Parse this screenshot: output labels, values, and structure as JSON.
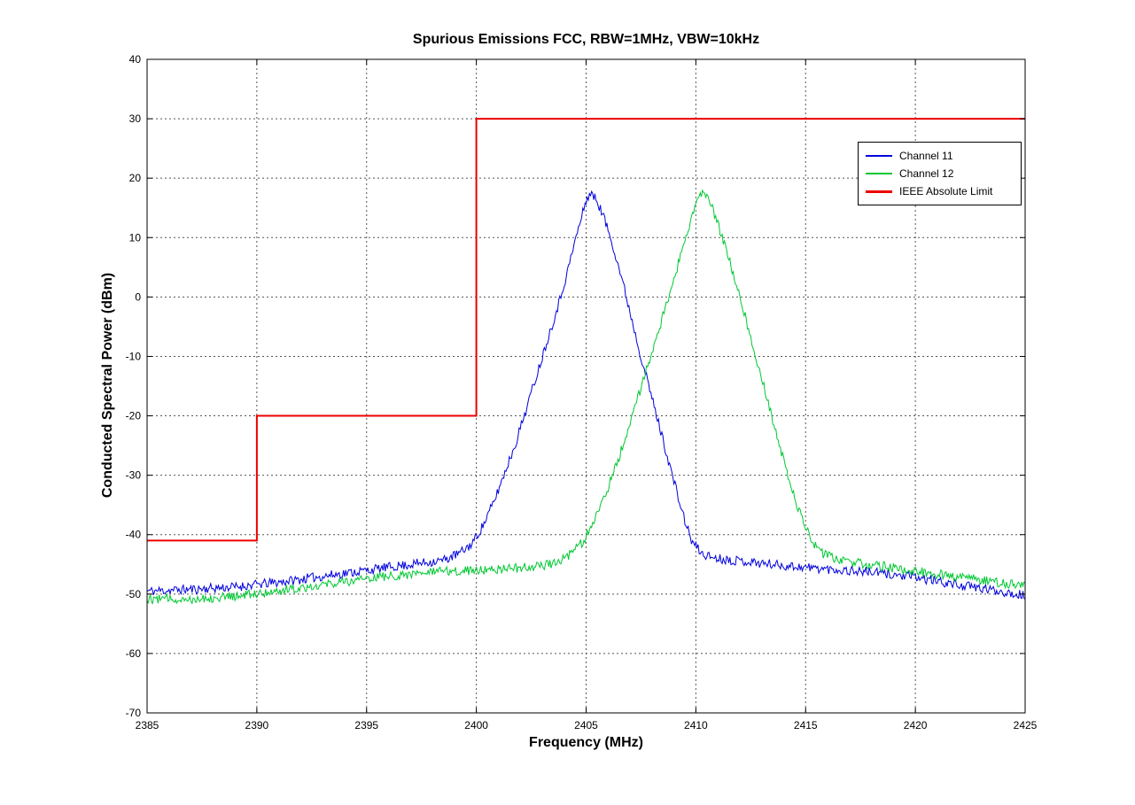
{
  "chart_data": {
    "type": "line",
    "title": "Spurious Emissions FCC, RBW=1MHz, VBW=10kHz",
    "xlabel": "Frequency (MHz)",
    "ylabel": "Conducted Spectral Power (dBm)",
    "xlim": [
      2385,
      2425
    ],
    "ylim": [
      -70,
      40
    ],
    "xticks": [
      2385,
      2390,
      2395,
      2400,
      2405,
      2410,
      2415,
      2420,
      2425
    ],
    "yticks": [
      -70,
      -60,
      -50,
      -40,
      -30,
      -20,
      -10,
      0,
      10,
      20,
      30,
      40
    ],
    "grid": true,
    "grid_style": "dashed",
    "legend_position": "upper right",
    "series": [
      {
        "name": "Channel 11",
        "color": "#0000dd",
        "linewidth": 1,
        "style": "noisy",
        "noise_amplitude": 0.8,
        "seed": 11,
        "points": [
          [
            2385,
            -49.5
          ],
          [
            2387,
            -49.2
          ],
          [
            2389,
            -48.8
          ],
          [
            2391,
            -48
          ],
          [
            2393,
            -47
          ],
          [
            2395,
            -46
          ],
          [
            2397,
            -45
          ],
          [
            2398.5,
            -44.3
          ],
          [
            2399.3,
            -43
          ],
          [
            2399.8,
            -41.5
          ],
          [
            2400.3,
            -38.5
          ],
          [
            2400.8,
            -34.5
          ],
          [
            2401.3,
            -29.5
          ],
          [
            2401.8,
            -24.5
          ],
          [
            2402.3,
            -18.5
          ],
          [
            2402.8,
            -12.5
          ],
          [
            2403.3,
            -6.5
          ],
          [
            2403.8,
            -0.5
          ],
          [
            2404.2,
            5
          ],
          [
            2404.5,
            9.5
          ],
          [
            2404.8,
            13.5
          ],
          [
            2405,
            16.3
          ],
          [
            2405.2,
            17.5
          ],
          [
            2405.5,
            16.2
          ],
          [
            2405.8,
            13.5
          ],
          [
            2406.2,
            9
          ],
          [
            2406.6,
            3.5
          ],
          [
            2407,
            -2.5
          ],
          [
            2407.5,
            -10
          ],
          [
            2408,
            -17
          ],
          [
            2408.5,
            -24
          ],
          [
            2409,
            -31
          ],
          [
            2409.4,
            -36.5
          ],
          [
            2409.8,
            -41
          ],
          [
            2410.3,
            -43.3
          ],
          [
            2411,
            -44
          ],
          [
            2412.5,
            -44.6
          ],
          [
            2414,
            -45.2
          ],
          [
            2416,
            -45.8
          ],
          [
            2418,
            -46.3
          ],
          [
            2420,
            -47.2
          ],
          [
            2422,
            -48.5
          ],
          [
            2424,
            -49.6
          ],
          [
            2425,
            -50.2
          ]
        ]
      },
      {
        "name": "Channel 12",
        "color": "#00c832",
        "linewidth": 1,
        "style": "noisy",
        "noise_amplitude": 0.8,
        "seed": 12,
        "points": [
          [
            2385,
            -50.8
          ],
          [
            2387,
            -50.8
          ],
          [
            2389,
            -50.4
          ],
          [
            2391,
            -49.4
          ],
          [
            2393,
            -48.4
          ],
          [
            2395,
            -47.4
          ],
          [
            2397,
            -46.6
          ],
          [
            2399,
            -46.1
          ],
          [
            2401,
            -45.8
          ],
          [
            2402.5,
            -45.5
          ],
          [
            2403.5,
            -44.8
          ],
          [
            2404.3,
            -43.3
          ],
          [
            2404.9,
            -41
          ],
          [
            2405.4,
            -37.5
          ],
          [
            2405.9,
            -33
          ],
          [
            2406.4,
            -28
          ],
          [
            2406.9,
            -22.5
          ],
          [
            2407.4,
            -16.5
          ],
          [
            2407.9,
            -10.5
          ],
          [
            2408.4,
            -4.5
          ],
          [
            2408.9,
            1.5
          ],
          [
            2409.3,
            7
          ],
          [
            2409.6,
            11
          ],
          [
            2409.9,
            14.5
          ],
          [
            2410.1,
            16.8
          ],
          [
            2410.3,
            17.5
          ],
          [
            2410.6,
            16
          ],
          [
            2410.9,
            13.5
          ],
          [
            2411.3,
            9
          ],
          [
            2411.7,
            4
          ],
          [
            2412.2,
            -2.5
          ],
          [
            2412.7,
            -9.5
          ],
          [
            2413.2,
            -16.5
          ],
          [
            2413.7,
            -23.5
          ],
          [
            2414.2,
            -30
          ],
          [
            2414.7,
            -36
          ],
          [
            2415.2,
            -40.5
          ],
          [
            2415.7,
            -43
          ],
          [
            2416.5,
            -44.2
          ],
          [
            2417.5,
            -44.8
          ],
          [
            2418.5,
            -45.3
          ],
          [
            2419.5,
            -45.9
          ],
          [
            2420.5,
            -46.4
          ],
          [
            2421.5,
            -46.9
          ],
          [
            2422.5,
            -47.4
          ],
          [
            2423.5,
            -47.9
          ],
          [
            2425,
            -48.6
          ]
        ]
      },
      {
        "name": "IEEE Absolute Limit",
        "color": "#ee0000",
        "linewidth": 2,
        "style": "step",
        "noise_amplitude": 0,
        "seed": 0,
        "points": [
          [
            2385,
            -41
          ],
          [
            2390,
            -41
          ],
          [
            2390,
            -20
          ],
          [
            2400,
            -20
          ],
          [
            2400,
            30
          ],
          [
            2425,
            30
          ]
        ]
      }
    ]
  }
}
